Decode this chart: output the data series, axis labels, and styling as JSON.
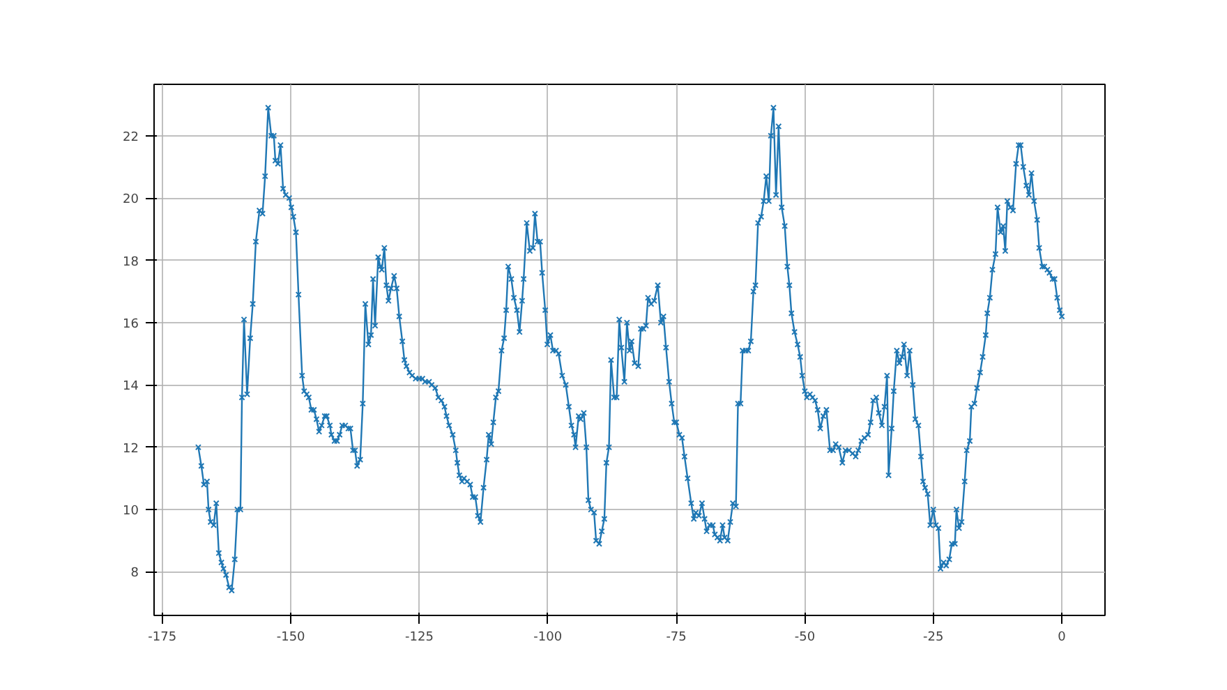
{
  "chart_data": {
    "type": "line",
    "x": [
      -168,
      -167.4,
      -166.9,
      -166.3,
      -166,
      -165.6,
      -165,
      -164.5,
      -164,
      -163.5,
      -163.1,
      -162.6,
      -162,
      -161.5,
      -160.9,
      -160.4,
      -159.8,
      -159.5,
      -159.1,
      -158.5,
      -157.9,
      -157.4,
      -156.8,
      -156.1,
      -155.5,
      -155,
      -154.4,
      -153.8,
      -153.3,
      -153,
      -152.5,
      -152,
      -151.5,
      -151,
      -150.3,
      -149.9,
      -149.5,
      -149,
      -148.5,
      -147.8,
      -147.4,
      -146.9,
      -146.5,
      -146,
      -145.5,
      -145,
      -144.5,
      -144,
      -143.4,
      -143,
      -142.4,
      -142.1,
      -141.5,
      -141,
      -140.5,
      -140,
      -139.4,
      -138.8,
      -138.4,
      -137.9,
      -137.5,
      -137.1,
      -136.5,
      -136,
      -135.5,
      -134.9,
      -134.4,
      -134,
      -133.6,
      -133,
      -132.6,
      -132.3,
      -131.8,
      -131.4,
      -131,
      -130.5,
      -129.9,
      -129.4,
      -128.9,
      -128.3,
      -127.9,
      -127.5,
      -126.9,
      -126.4,
      -125.7,
      -125,
      -124.4,
      -123.9,
      -123.1,
      -122.6,
      -121.9,
      -121.3,
      -120.7,
      -120.1,
      -119.7,
      -119.2,
      -118.5,
      -117.9,
      -117.6,
      -117.2,
      -116.7,
      -116.3,
      -115.7,
      -115.1,
      -114.6,
      -114.1,
      -113.6,
      -113.1,
      -112.5,
      -111.9,
      -111.5,
      -111,
      -110.6,
      -110.1,
      -109.6,
      -109,
      -108.5,
      -108.1,
      -107.7,
      -107.1,
      -106.6,
      -106,
      -105.5,
      -105,
      -104.7,
      -104.1,
      -103.5,
      -102.9,
      -102.5,
      -102,
      -101.5,
      -101.1,
      -100.5,
      -100.1,
      -99.5,
      -99,
      -98.4,
      -97.9,
      -97.2,
      -96.5,
      -95.9,
      -95.4,
      -94.9,
      -94.6,
      -94,
      -93.6,
      -93,
      -92.5,
      -92.1,
      -91.6,
      -91,
      -90.6,
      -90,
      -89.5,
      -89,
      -88.6,
      -88.1,
      -87.7,
      -87.1,
      -86.6,
      -86.1,
      -85.7,
      -85.1,
      -84.6,
      -84.1,
      -83.7,
      -83.1,
      -82.4,
      -81.9,
      -81.4,
      -80.9,
      -80.5,
      -79.9,
      -79.3,
      -78.6,
      -78,
      -77.5,
      -77,
      -76.4,
      -75.9,
      -75.4,
      -75,
      -74.4,
      -73.9,
      -73.4,
      -72.8,
      -72.1,
      -71.6,
      -71.2,
      -70.6,
      -70,
      -69.5,
      -69.1,
      -68.5,
      -67.9,
      -67.5,
      -67,
      -66.5,
      -66,
      -65.6,
      -65,
      -64.5,
      -64,
      -63.4,
      -63,
      -62.5,
      -62.1,
      -61.5,
      -61,
      -60.5,
      -60,
      -59.6,
      -59.1,
      -58.5,
      -58,
      -57.5,
      -57,
      -56.6,
      -56.1,
      -55.6,
      -55.1,
      -54.5,
      -53.9,
      -53.4,
      -53,
      -52.6,
      -52,
      -51.4,
      -50.9,
      -50.5,
      -50,
      -49.6,
      -49,
      -48.5,
      -48,
      -47.5,
      -47,
      -46.4,
      -45.8,
      -45.1,
      -44.5,
      -44,
      -43.4,
      -42.7,
      -42.1,
      -41.4,
      -40.7,
      -40.1,
      -39.6,
      -39,
      -38.4,
      -37.7,
      -37.2,
      -36.7,
      -36.1,
      -35.6,
      -35,
      -34.5,
      -34,
      -33.7,
      -33.1,
      -32.7,
      -32.1,
      -31.6,
      -31.1,
      -30.7,
      -30.1,
      -29.6,
      -29,
      -28.5,
      -27.9,
      -27.4,
      -27,
      -26.6,
      -26.1,
      -25.6,
      -25,
      -24.5,
      -24,
      -23.6,
      -23,
      -22.5,
      -21.9,
      -21.4,
      -20.8,
      -20.5,
      -20,
      -19.5,
      -18.9,
      -18.5,
      -17.9,
      -17.6,
      -17,
      -16.5,
      -15.9,
      -15.4,
      -14.8,
      -14.5,
      -14,
      -13.5,
      -12.9,
      -12.5,
      -11.9,
      -11.4,
      -11,
      -10.6,
      -10,
      -9.5,
      -8.9,
      -8.4,
      -8,
      -7.5,
      -6.9,
      -6.4,
      -5.9,
      -5.4,
      -4.8,
      -4.4,
      -3.8,
      -3.4,
      -2.8,
      -2.4,
      -1.8,
      -1.4,
      -0.9,
      -0.4,
      0
    ],
    "series": [
      {
        "color": "#1f77b4",
        "values": [
          12.0,
          11.4,
          10.8,
          10.9,
          10.0,
          9.6,
          9.5,
          10.2,
          8.6,
          8.3,
          8.1,
          7.9,
          7.5,
          7.4,
          8.4,
          10.0,
          10.0,
          13.6,
          16.1,
          13.7,
          15.5,
          16.6,
          18.6,
          19.6,
          19.5,
          20.7,
          22.9,
          22.0,
          22.0,
          21.2,
          21.1,
          21.7,
          20.3,
          20.1,
          20.0,
          19.7,
          19.4,
          18.9,
          16.9,
          14.3,
          13.8,
          13.7,
          13.6,
          13.2,
          13.2,
          12.9,
          12.5,
          12.7,
          13.0,
          13.0,
          12.7,
          12.4,
          12.2,
          12.2,
          12.4,
          12.7,
          12.7,
          12.6,
          12.6,
          11.9,
          11.9,
          11.4,
          11.6,
          13.4,
          16.6,
          15.3,
          15.6,
          17.4,
          15.9,
          18.1,
          17.8,
          17.7,
          18.4,
          17.2,
          16.7,
          17.1,
          17.5,
          17.1,
          16.2,
          15.4,
          14.8,
          14.6,
          14.4,
          14.3,
          14.2,
          14.2,
          14.2,
          14.1,
          14.1,
          14.0,
          13.9,
          13.6,
          13.5,
          13.3,
          13.0,
          12.7,
          12.4,
          11.9,
          11.5,
          11.1,
          10.9,
          11.0,
          10.9,
          10.8,
          10.4,
          10.4,
          9.8,
          9.6,
          10.7,
          11.6,
          12.4,
          12.1,
          12.8,
          13.6,
          13.8,
          15.1,
          15.5,
          16.4,
          17.8,
          17.4,
          16.8,
          16.4,
          15.7,
          16.7,
          17.4,
          19.2,
          18.3,
          18.4,
          19.5,
          18.6,
          18.6,
          17.6,
          16.4,
          15.3,
          15.6,
          15.1,
          15.1,
          15.0,
          14.3,
          14.0,
          13.3,
          12.7,
          12.4,
          12.0,
          13.0,
          12.9,
          13.1,
          12.0,
          10.3,
          10.0,
          9.9,
          9.0,
          8.9,
          9.3,
          9.7,
          11.5,
          12.0,
          14.8,
          13.6,
          13.6,
          16.1,
          15.2,
          14.1,
          16.0,
          15.1,
          15.4,
          14.7,
          14.6,
          15.8,
          15.8,
          15.9,
          16.8,
          16.6,
          16.7,
          17.2,
          16.0,
          16.2,
          15.2,
          14.1,
          13.4,
          12.8,
          12.8,
          12.4,
          12.3,
          11.7,
          11.0,
          10.2,
          9.7,
          9.9,
          9.8,
          10.2,
          9.7,
          9.3,
          9.5,
          9.5,
          9.2,
          9.1,
          9.0,
          9.5,
          9.1,
          9.0,
          9.6,
          10.2,
          10.1,
          13.4,
          13.4,
          15.1,
          15.1,
          15.1,
          15.4,
          17.0,
          17.2,
          19.2,
          19.4,
          19.9,
          20.7,
          19.9,
          22.0,
          22.9,
          20.1,
          22.3,
          19.7,
          19.1,
          17.8,
          17.2,
          16.3,
          15.7,
          15.3,
          14.9,
          14.3,
          13.8,
          13.6,
          13.7,
          13.6,
          13.5,
          13.2,
          12.6,
          13.0,
          13.2,
          11.9,
          11.9,
          12.1,
          12.0,
          11.5,
          11.9,
          11.9,
          11.8,
          11.7,
          11.9,
          12.2,
          12.3,
          12.4,
          12.8,
          13.5,
          13.6,
          13.1,
          12.7,
          13.3,
          14.3,
          11.1,
          12.6,
          13.8,
          15.1,
          14.7,
          14.9,
          15.3,
          14.3,
          15.1,
          14.0,
          12.9,
          12.7,
          11.7,
          10.9,
          10.7,
          10.5,
          9.5,
          10.0,
          9.5,
          9.4,
          8.1,
          8.3,
          8.2,
          8.4,
          8.9,
          8.9,
          10.0,
          9.4,
          9.6,
          10.9,
          11.9,
          12.2,
          13.3,
          13.4,
          13.9,
          14.4,
          14.9,
          15.6,
          16.3,
          16.8,
          17.7,
          18.2,
          19.7,
          18.9,
          19.1,
          18.3,
          19.9,
          19.7,
          19.6,
          21.1,
          21.7,
          21.7,
          21.0,
          20.4,
          20.1,
          20.8,
          19.9,
          19.3,
          18.4,
          17.8,
          17.8,
          17.7,
          17.6,
          17.4,
          17.4,
          16.8,
          16.4,
          16.2
        ]
      }
    ],
    "xlim": [
      -176.6,
      8.4
    ],
    "ylim": [
      6.6,
      23.65
    ],
    "xticks": [
      -175,
      -150,
      -125,
      -100,
      -75,
      -50,
      -25,
      0
    ],
    "yticks": [
      8,
      10,
      12,
      14,
      16,
      18,
      20,
      22
    ],
    "grid": true,
    "marker": "cross",
    "line_style": "solid"
  }
}
